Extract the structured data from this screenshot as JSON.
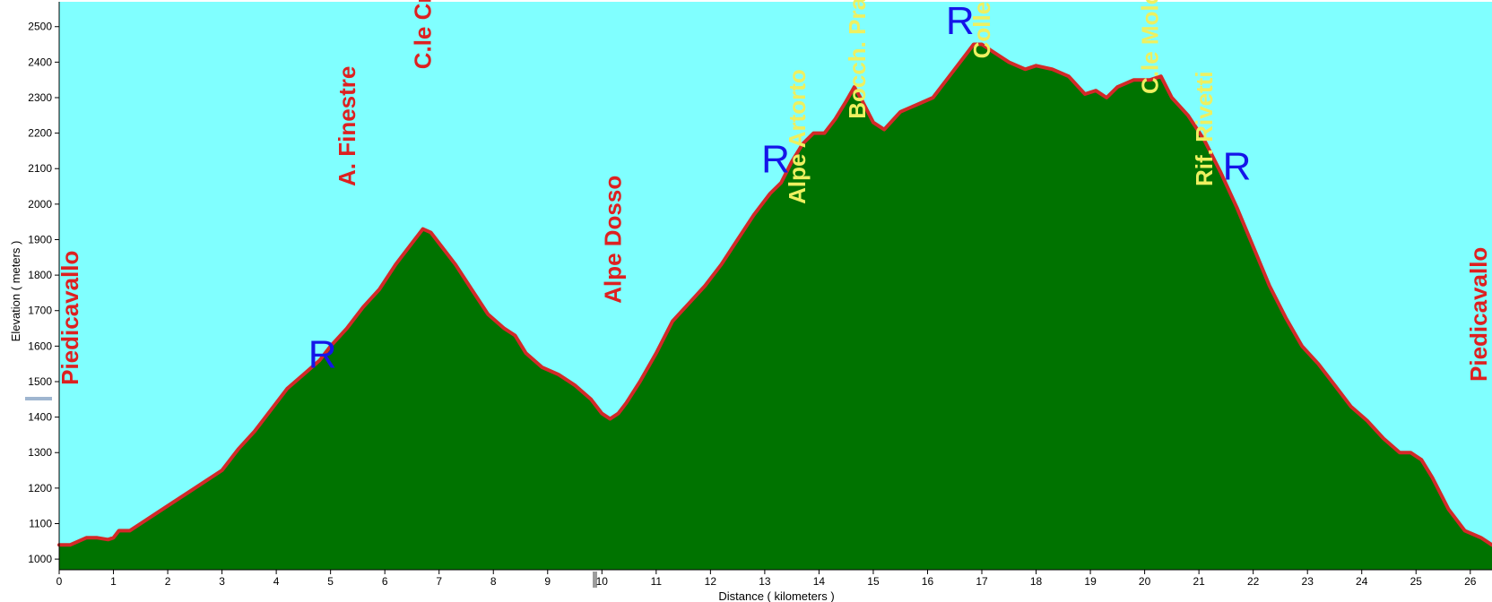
{
  "chart_data": {
    "type": "area",
    "xlabel": "Distance ( kilometers )",
    "ylabel": "Elevation ( meters )",
    "xlim": [
      0,
      26.4
    ],
    "ylim": [
      970,
      2570
    ],
    "xticks": [
      "0",
      "1",
      "2",
      "3",
      "4",
      "5",
      "6",
      "7",
      "8",
      "9",
      "10",
      "11",
      "12",
      "13",
      "14",
      "15",
      "16",
      "17",
      "18",
      "19",
      "20",
      "21",
      "22",
      "23",
      "24",
      "25",
      "26"
    ],
    "yticks": [
      "1000",
      "1100",
      "1200",
      "1300",
      "1400",
      "1500",
      "1600",
      "1700",
      "1800",
      "1900",
      "2000",
      "2100",
      "2200",
      "2300",
      "2400",
      "2500"
    ],
    "colors": {
      "sky": "#80ffff",
      "fill": "#007300",
      "outline": "#d42828",
      "red_label": "#dd2020",
      "yellow_label": "#eef060",
      "refuge": "#1515e8"
    },
    "series": [
      {
        "x": [
          0,
          0.2,
          0.35,
          0.5,
          0.7,
          0.9,
          1.0,
          1.1,
          1.3,
          1.5,
          1.8,
          2.1,
          2.4,
          2.7,
          3.0,
          3.3,
          3.6,
          3.9,
          4.2,
          4.5,
          4.8,
          5.0,
          5.3,
          5.6,
          5.9,
          6.2,
          6.5,
          6.7,
          6.85,
          7.0,
          7.3,
          7.6,
          7.9,
          8.2,
          8.4,
          8.6,
          8.9,
          9.2,
          9.5,
          9.8,
          10.0,
          10.15,
          10.3,
          10.45,
          10.7,
          11.0,
          11.3,
          11.6,
          11.9,
          12.2,
          12.5,
          12.8,
          13.1,
          13.3,
          13.5,
          13.7,
          13.9,
          14.1,
          14.3,
          14.5,
          14.65,
          14.8,
          15.0,
          15.2,
          15.5,
          15.8,
          16.1,
          16.4,
          16.7,
          16.85,
          17.0,
          17.2,
          17.5,
          17.8,
          18.0,
          18.3,
          18.6,
          18.9,
          19.1,
          19.3,
          19.5,
          19.8,
          20.1,
          20.3,
          20.5,
          20.8,
          21.1,
          21.4,
          21.7,
          22.0,
          22.3,
          22.6,
          22.9,
          23.2,
          23.5,
          23.8,
          24.1,
          24.4,
          24.7,
          24.9,
          25.1,
          25.3,
          25.6,
          25.9,
          26.2,
          26.4
        ],
        "y": [
          1040,
          1040,
          1050,
          1060,
          1060,
          1055,
          1060,
          1080,
          1080,
          1100,
          1130,
          1160,
          1190,
          1220,
          1250,
          1310,
          1360,
          1420,
          1480,
          1520,
          1560,
          1600,
          1650,
          1710,
          1760,
          1830,
          1890,
          1930,
          1920,
          1890,
          1830,
          1760,
          1690,
          1650,
          1630,
          1580,
          1540,
          1520,
          1490,
          1450,
          1410,
          1395,
          1410,
          1440,
          1500,
          1580,
          1670,
          1720,
          1770,
          1830,
          1900,
          1970,
          2030,
          2060,
          2120,
          2170,
          2200,
          2200,
          2240,
          2290,
          2330,
          2290,
          2230,
          2210,
          2260,
          2280,
          2300,
          2360,
          2420,
          2450,
          2450,
          2430,
          2400,
          2380,
          2390,
          2380,
          2360,
          2310,
          2320,
          2300,
          2330,
          2350,
          2350,
          2360,
          2300,
          2250,
          2180,
          2090,
          1990,
          1880,
          1770,
          1680,
          1600,
          1550,
          1490,
          1430,
          1390,
          1340,
          1300,
          1300,
          1280,
          1230,
          1140,
          1080,
          1060,
          1040
        ]
      }
    ],
    "place_labels": [
      {
        "text": "Piedicavallo",
        "x": 0.2,
        "top": 1490,
        "color": "red"
      },
      {
        "text": "A. Finestre",
        "x": 5.3,
        "top": 2050,
        "color": "red"
      },
      {
        "text": "C.le Croso",
        "x": 6.7,
        "top": 2380,
        "color": "red"
      },
      {
        "text": "Alpe Dosso",
        "x": 10.2,
        "top": 1720,
        "color": "red"
      },
      {
        "text": "Alpe Artorto",
        "x": 13.6,
        "top": 2000,
        "color": "yellow"
      },
      {
        "text": "Bocch. Prato",
        "x": 14.7,
        "top": 2240,
        "color": "yellow"
      },
      {
        "text": "Colle Loo",
        "x": 17.0,
        "top": 2410,
        "color": "yellow"
      },
      {
        "text": "C.le Mologna Grande",
        "x": 20.1,
        "top": 2310,
        "color": "yellow"
      },
      {
        "text": "Rif. Rivetti",
        "x": 21.1,
        "top": 2050,
        "color": "yellow"
      },
      {
        "text": "Piedicavallo",
        "x": 26.15,
        "top": 1500,
        "color": "red"
      }
    ],
    "refuge_markers": [
      {
        "text": "R",
        "x": 4.85,
        "y": 1580
      },
      {
        "text": "R",
        "x": 13.2,
        "y": 2130
      },
      {
        "text": "R",
        "x": 16.6,
        "y": 2520
      },
      {
        "text": "R",
        "x": 21.7,
        "y": 2110
      }
    ]
  }
}
